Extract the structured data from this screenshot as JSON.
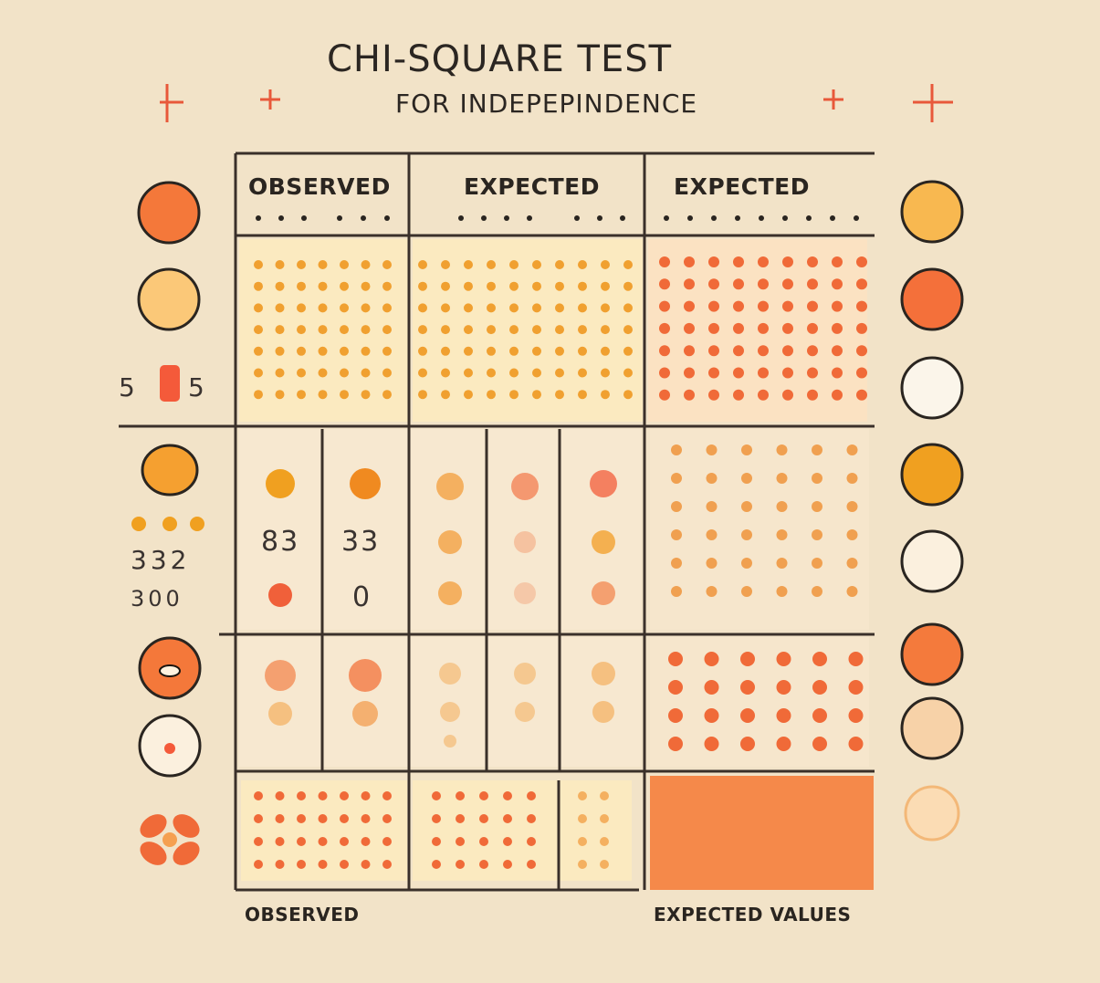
{
  "title": "CHI-SQUARE TEST",
  "subtitle": "FOR INDEPEPINDENCE",
  "headers": {
    "col1": "OBSERVED",
    "col2": "EXPECTED",
    "col3": "EXPECTED"
  },
  "footer": {
    "left": "OBSERVED",
    "right": "EXPECTED VALUES"
  },
  "cell_numbers": {
    "left_a": "83",
    "left_b": "33",
    "left_c": "0"
  },
  "side_labels": {
    "label_1": "5",
    "label_1b": "5",
    "label_2": "332",
    "label_3": "300"
  },
  "colors": {
    "background": "#f2e3c8",
    "grid_line": "#3a302a",
    "orange": "#f47a3c",
    "amber": "#f0a030",
    "peach": "#f6c290",
    "light_yellow": "#fbeac0"
  },
  "icons": {
    "plus": "plus-icon",
    "circle": "circle-icon",
    "flower": "flower-icon"
  }
}
